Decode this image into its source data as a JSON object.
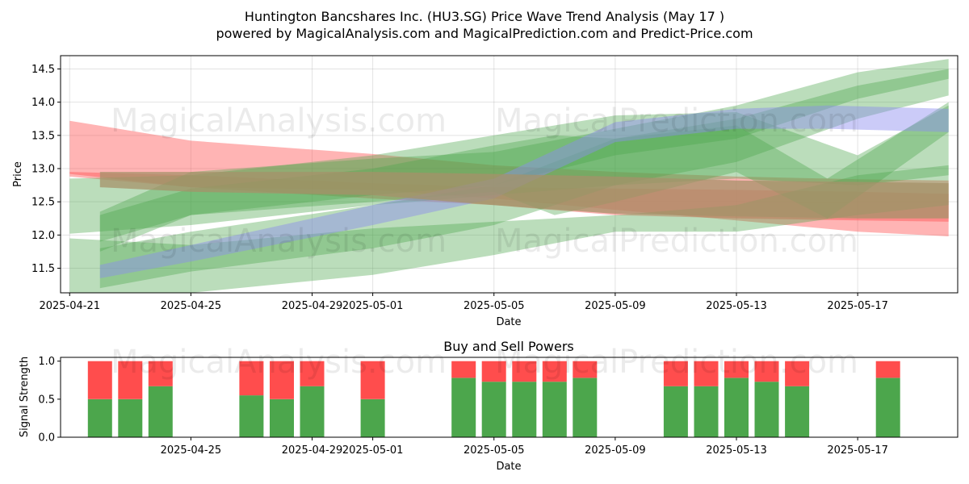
{
  "title": {
    "line1": "Huntington Bancshares Inc. (HU3.SG) Price Wave Trend Analysis (May 17 )",
    "line2": "powered by MagicalAnalysis.com and MagicalPrediction.com and Predict-Price.com"
  },
  "watermarks": [
    "MagicalAnalysis.com",
    "MagicalPrediction.com"
  ],
  "colors": {
    "red": "#ff4d4d",
    "green": "#4ca64c",
    "blue": "#8c8cf0",
    "brown": "#a5916a"
  },
  "chart_data": [
    {
      "type": "area",
      "title": "",
      "xlabel": "Date",
      "ylabel": "Price",
      "xlim": [
        "2025-04-20.7",
        "2025-05-20.3"
      ],
      "ylim": [
        11.13,
        14.7
      ],
      "x_ticks": [
        "2025-04-21",
        "2025-04-25",
        "2025-04-29",
        "2025-05-01",
        "2025-05-05",
        "2025-05-09",
        "2025-05-13",
        "2025-05-17"
      ],
      "y_ticks": [
        11.5,
        12.0,
        12.5,
        13.0,
        13.5,
        14.0,
        14.5
      ],
      "grid": true,
      "series": [
        {
          "name": "sell-band-1",
          "color": "red",
          "x": [
            "2025-04-21",
            "2025-04-25",
            "2025-05-01",
            "2025-05-05",
            "2025-05-09",
            "2025-05-13",
            "2025-05-17",
            "2025-05-20"
          ],
          "upper": [
            13.72,
            13.42,
            13.22,
            13.05,
            12.95,
            12.88,
            12.84,
            12.82
          ],
          "lower": [
            12.92,
            12.72,
            12.68,
            12.55,
            12.38,
            12.22,
            12.05,
            11.98
          ]
        },
        {
          "name": "sell-band-2",
          "color": "red",
          "x": [
            "2025-04-21",
            "2025-04-25",
            "2025-05-01",
            "2025-05-05",
            "2025-05-09",
            "2025-05-13",
            "2025-05-17",
            "2025-05-20"
          ],
          "upper": [
            12.95,
            12.9,
            12.78,
            12.72,
            12.7,
            12.68,
            12.65,
            12.62
          ],
          "lower": [
            12.88,
            12.72,
            12.55,
            12.45,
            12.3,
            12.25,
            12.22,
            12.2
          ]
        },
        {
          "name": "buy-band-1",
          "color": "green",
          "x": [
            "2025-04-21",
            "2025-04-25",
            "2025-05-01",
            "2025-05-05",
            "2025-05-09",
            "2025-05-13",
            "2025-05-17",
            "2025-05-20"
          ],
          "upper": [
            12.85,
            12.9,
            13.2,
            13.5,
            13.8,
            13.85,
            13.2,
            13.95
          ],
          "lower": [
            12.02,
            12.15,
            12.45,
            12.6,
            12.75,
            12.85,
            12.75,
            12.9
          ]
        },
        {
          "name": "buy-band-2",
          "color": "green",
          "x": [
            "2025-04-22",
            "2025-04-25",
            "2025-05-01",
            "2025-05-05",
            "2025-05-09",
            "2025-05-13",
            "2025-05-17",
            "2025-05-20"
          ],
          "upper": [
            12.35,
            12.95,
            13.15,
            13.25,
            13.6,
            13.95,
            14.45,
            14.65
          ],
          "lower": [
            11.75,
            12.3,
            12.6,
            12.75,
            13.2,
            13.45,
            14.05,
            14.35
          ]
        },
        {
          "name": "buy-band-3",
          "color": "green",
          "x": [
            "2025-04-22",
            "2025-04-25",
            "2025-05-01",
            "2025-05-05",
            "2025-05-09",
            "2025-05-13",
            "2025-05-17",
            "2025-05-20"
          ],
          "upper": [
            11.8,
            12.05,
            12.45,
            12.75,
            13.45,
            13.75,
            14.25,
            14.5
          ],
          "lower": [
            11.2,
            11.45,
            11.8,
            12.15,
            12.75,
            13.1,
            13.75,
            14.1
          ]
        },
        {
          "name": "buy-band-4",
          "color": "green",
          "x": [
            "2025-04-21",
            "2025-04-25",
            "2025-05-01",
            "2025-05-05",
            "2025-05-09",
            "2025-05-13",
            "2025-05-17",
            "2025-05-20"
          ],
          "upper": [
            11.95,
            11.85,
            12.1,
            12.2,
            12.3,
            12.45,
            12.9,
            13.05
          ],
          "lower": [
            11.13,
            11.13,
            11.4,
            11.7,
            12.05,
            12.05,
            12.3,
            12.45
          ]
        },
        {
          "name": "buy-band-5",
          "color": "green",
          "x": [
            "2025-04-22",
            "2025-04-25",
            "2025-05-01",
            "2025-05-05",
            "2025-05-07",
            "2025-05-09",
            "2025-05-13",
            "2025-05-16",
            "2025-05-20"
          ],
          "upper": [
            12.3,
            12.7,
            13.0,
            13.35,
            13.5,
            13.45,
            13.65,
            12.85,
            14.0
          ],
          "lower": [
            11.9,
            12.3,
            12.5,
            12.65,
            12.3,
            12.5,
            12.95,
            12.25,
            13.55
          ]
        },
        {
          "name": "mixed-band",
          "color": "blue",
          "x": [
            "2025-04-22",
            "2025-04-25",
            "2025-05-01",
            "2025-05-05",
            "2025-05-09",
            "2025-05-13",
            "2025-05-16",
            "2025-05-20"
          ],
          "upper": [
            11.55,
            11.85,
            12.45,
            12.85,
            13.7,
            13.9,
            13.95,
            13.9
          ],
          "lower": [
            11.35,
            11.6,
            12.15,
            12.55,
            13.4,
            13.6,
            13.6,
            13.55
          ]
        },
        {
          "name": "overlap-band",
          "color": "brown",
          "x": [
            "2025-04-22",
            "2025-04-25",
            "2025-05-01",
            "2025-05-05",
            "2025-05-09",
            "2025-05-13",
            "2025-05-17",
            "2025-05-20"
          ],
          "upper": [
            12.95,
            12.95,
            12.95,
            12.92,
            12.88,
            12.82,
            12.8,
            12.78
          ],
          "lower": [
            12.72,
            12.65,
            12.6,
            12.45,
            12.32,
            12.28,
            12.25,
            12.25
          ]
        }
      ]
    },
    {
      "type": "bar",
      "title": "Buy and Sell Powers",
      "xlabel": "Date",
      "ylabel": "Signal Strength",
      "xlim": [
        "2025-04-20.7",
        "2025-05-20.3"
      ],
      "ylim": [
        0,
        1.05
      ],
      "x_ticks": [
        "2025-04-25",
        "2025-04-29",
        "2025-05-01",
        "2025-05-05",
        "2025-05-09",
        "2025-05-13",
        "2025-05-17"
      ],
      "y_ticks": [
        0.0,
        0.5,
        1.0
      ],
      "grid": false,
      "categories": [
        "2025-04-22",
        "2025-04-23",
        "2025-04-24",
        "2025-04-27",
        "2025-04-28",
        "2025-04-29",
        "2025-05-01",
        "2025-05-04",
        "2025-05-05",
        "2025-05-06",
        "2025-05-07",
        "2025-05-08",
        "2025-05-11",
        "2025-05-12",
        "2025-05-13",
        "2025-05-14",
        "2025-05-15",
        "2025-05-18"
      ],
      "series": [
        {
          "name": "Buy",
          "color": "green",
          "values": [
            0.5,
            0.5,
            0.67,
            0.55,
            0.5,
            0.67,
            0.5,
            0.78,
            0.73,
            0.73,
            0.73,
            0.78,
            0.67,
            0.67,
            0.78,
            0.73,
            0.67,
            0.78
          ]
        },
        {
          "name": "Sell",
          "color": "red",
          "values": [
            0.5,
            0.5,
            0.33,
            0.45,
            0.5,
            0.33,
            0.5,
            0.22,
            0.27,
            0.27,
            0.27,
            0.22,
            0.33,
            0.33,
            0.22,
            0.27,
            0.33,
            0.22
          ]
        }
      ]
    }
  ]
}
